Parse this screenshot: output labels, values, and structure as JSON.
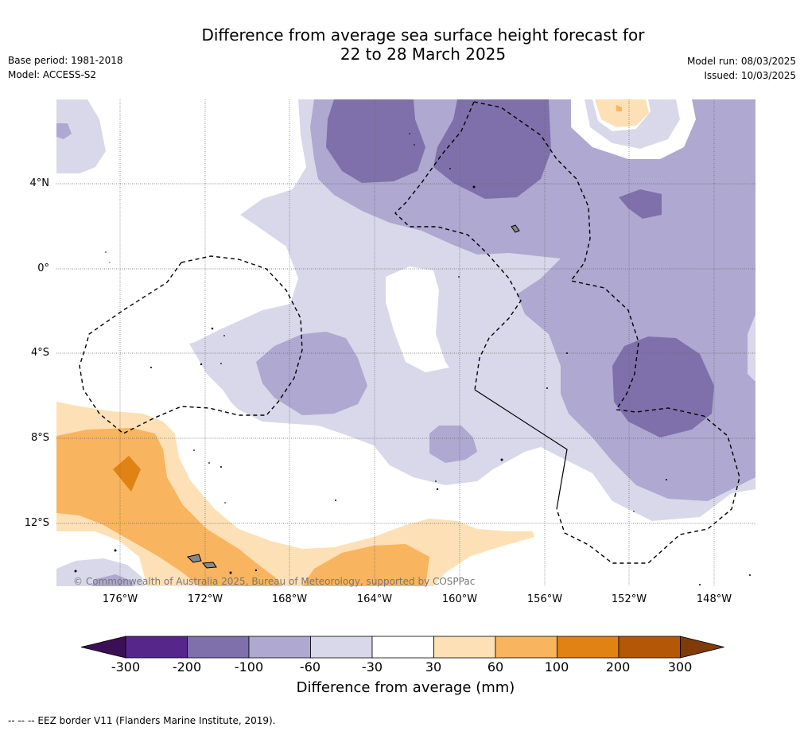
{
  "title_line1": "Difference from average sea surface height forecast for",
  "title_line2": "22 to 28 March 2025",
  "base_period": "Base period: 1981-2018",
  "model": "Model: ACCESS-S2",
  "model_run": "Model run: 08/03/2025",
  "issued": "Issued: 10/03/2025",
  "lat_labels": [
    "4°N",
    "0°",
    "4°S",
    "8°S",
    "12°S"
  ],
  "lon_labels": [
    "176°W",
    "172°W",
    "168°W",
    "164°W",
    "160°W",
    "156°W",
    "152°W",
    "148°W"
  ],
  "copyright": "© Commonwealth of Australia 2025, Bureau of Meteorology, supported by COSPPac",
  "colorbar": {
    "title": "Difference from average (mm)",
    "tick_labels": [
      "-300",
      "-200",
      "-100",
      "-60",
      "-30",
      "30",
      "60",
      "100",
      "200",
      "300"
    ],
    "colors": [
      "#3b0f55",
      "#57268a",
      "#7f70ab",
      "#afa8d0",
      "#d9d8ea",
      "#ffffff",
      "#fde0b5",
      "#f8b45e",
      "#e08214",
      "#b35806",
      "#7f3b08"
    ]
  },
  "footnote": "--  --  -- EEZ border V11 (Flanders Marine Institute, 2019)."
}
